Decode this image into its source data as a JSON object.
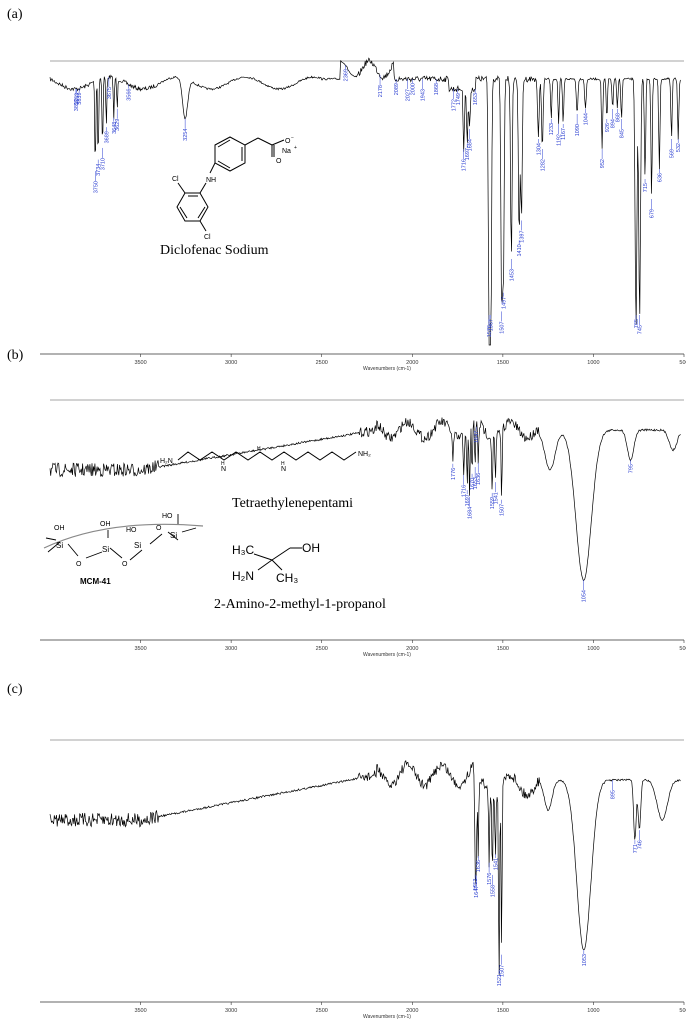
{
  "panels": [
    {
      "label": "(a)",
      "compound_label": "Diclofenac Sodium",
      "xlabel": "Wavenumbers (cm-1)",
      "xticks": [
        3500,
        3000,
        2500,
        2000,
        1500,
        1000,
        500
      ],
      "peaks": [
        3853,
        3857,
        3839,
        3750,
        3734,
        3710,
        3689,
        3675,
        3648,
        3629,
        3566,
        3254,
        2369,
        2178,
        2089,
        2027,
        2000,
        1943,
        1868,
        1772,
        1749,
        1716,
        1697,
        1684,
        1653,
        1576,
        1567,
        1507,
        1497,
        1453,
        1410,
        1397,
        1304,
        1282,
        1233,
        1192,
        1167,
        1090,
        1044,
        952,
        926,
        894,
        868,
        845,
        765,
        745,
        715,
        679,
        636,
        569,
        532
      ]
    },
    {
      "label": "(b)",
      "compound_label": "Tetraethylenepentami",
      "compound_label_2": "2-Amino-2-methyl-1-propanol",
      "material_label": "MCM-41",
      "xlabel": "Wavenumbers (cm-1)",
      "xticks": [
        3500,
        3000,
        2500,
        2000,
        1500,
        1000,
        500
      ],
      "peaks": [
        1776,
        1716,
        1697,
        1684,
        1670,
        1653,
        1647,
        1636,
        1559,
        1541,
        1507,
        1054,
        795
      ]
    },
    {
      "label": "(c)",
      "xlabel": "Wavenumbers (cm-1)",
      "xticks": [
        3500,
        3000,
        2500,
        2000,
        1500,
        1000,
        500
      ],
      "peaks": [
        1653,
        1647,
        1636,
        1576,
        1541,
        1558,
        1521,
        1507,
        1053,
        895,
        771,
        746
      ]
    }
  ],
  "chart_data": [
    {
      "type": "line",
      "title": "",
      "xlabel": "Wavenumbers (cm-1)",
      "ylabel": "",
      "xlim": [
        4000,
        500
      ],
      "x_reversed": true,
      "xticks": [
        3500,
        3000,
        2500,
        2000,
        1500,
        1000,
        500
      ],
      "annotations": [
        "Diclofenac Sodium"
      ],
      "peak_labels": [
        3853,
        3857,
        3839,
        3750,
        3734,
        3710,
        3689,
        3675,
        3648,
        3629,
        3566,
        3254,
        2369,
        2178,
        2089,
        2027,
        2000,
        1943,
        1868,
        1772,
        1749,
        1716,
        1697,
        1684,
        1653,
        1576,
        1567,
        1507,
        1497,
        1453,
        1410,
        1397,
        1304,
        1282,
        1233,
        1192,
        1167,
        1090,
        1044,
        952,
        926,
        894,
        868,
        845,
        765,
        745,
        715,
        679,
        636,
        569,
        532
      ]
    },
    {
      "type": "line",
      "title": "",
      "xlabel": "Wavenumbers (cm-1)",
      "ylabel": "",
      "xlim": [
        4000,
        500
      ],
      "x_reversed": true,
      "xticks": [
        3500,
        3000,
        2500,
        2000,
        1500,
        1000,
        500
      ],
      "annotations": [
        "Tetraethylenepentami",
        "2-Amino-2-methyl-1-propanol",
        "MCM-41"
      ],
      "peak_labels": [
        1776,
        1716,
        1697,
        1684,
        1670,
        1653,
        1647,
        1636,
        1559,
        1541,
        1507,
        1054,
        795
      ]
    },
    {
      "type": "line",
      "title": "",
      "xlabel": "Wavenumbers (cm-1)",
      "ylabel": "",
      "xlim": [
        4000,
        500
      ],
      "x_reversed": true,
      "xticks": [
        3500,
        3000,
        2500,
        2000,
        1500,
        1000,
        500
      ],
      "peak_labels": [
        1653,
        1647,
        1636,
        1576,
        1541,
        1558,
        1521,
        1507,
        1053,
        895,
        771,
        746
      ]
    }
  ],
  "colors": {
    "trace": "#000000",
    "peak_label": "#2b3fd1",
    "baseline": "#888888",
    "axis": "#333333"
  }
}
